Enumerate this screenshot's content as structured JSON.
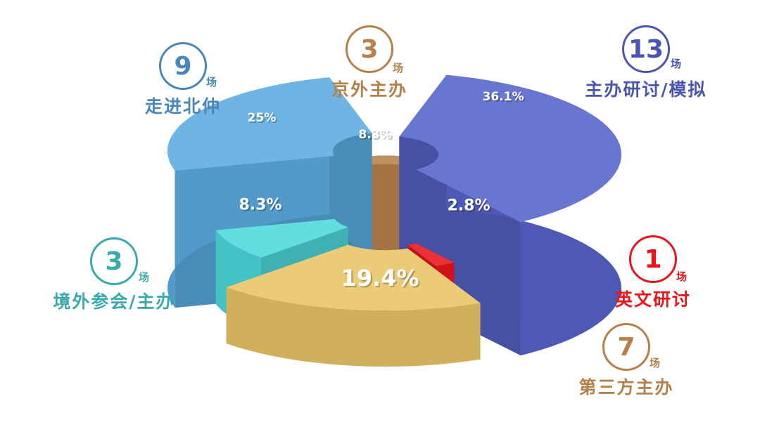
{
  "chart_data": {
    "type": "pie",
    "variant": "3d-exploded",
    "unit": "场",
    "slices": [
      {
        "name": "京外主办",
        "count": 3,
        "percent_label": "8.3%",
        "value": 8.3,
        "color": "#b5804a"
      },
      {
        "name": "主办研讨/模拟",
        "count": 13,
        "percent_label": "36.1%",
        "value": 36.1,
        "color": "#5563c8"
      },
      {
        "name": "英文研讨",
        "count": 1,
        "percent_label": "2.8%",
        "value": 2.8,
        "color": "#e8151b"
      },
      {
        "name": "第三方主办",
        "count": 7,
        "percent_label": "19.4%",
        "value": 19.4,
        "color": "#e8c466"
      },
      {
        "name": "境外参会/主办",
        "count": 3,
        "percent_label": "8.3%",
        "value": 8.3,
        "color": "#4dd8dc"
      },
      {
        "name": "走进北仲",
        "count": 9,
        "percent_label": "25%",
        "value": 25,
        "color": "#5aabe0"
      }
    ],
    "label_colors": [
      "#b5804a",
      "#4b55b0",
      "#e8151b",
      "#b5804a",
      "#3aa9ab",
      "#4a86b8"
    ]
  }
}
